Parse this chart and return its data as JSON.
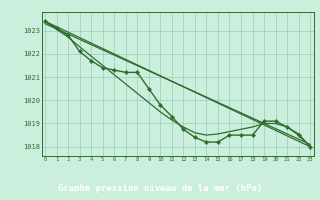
{
  "hours": [
    0,
    1,
    2,
    3,
    4,
    5,
    6,
    7,
    8,
    9,
    10,
    11,
    12,
    13,
    14,
    15,
    16,
    17,
    18,
    19,
    20,
    21,
    22,
    23
  ],
  "pressure_curve": [
    1023.4,
    1023.1,
    1022.8,
    1022.1,
    1021.7,
    1021.4,
    1021.3,
    1021.2,
    1021.2,
    1020.5,
    1019.8,
    1019.3,
    1018.75,
    1018.4,
    1018.2,
    1018.2,
    1018.5,
    1018.5,
    1018.5,
    1019.1,
    1019.1,
    1018.85,
    1018.5,
    1018.0
  ],
  "pressure_upper": [
    1023.4,
    1023.05,
    1022.72,
    1022.3,
    1021.9,
    1021.5,
    1021.1,
    1020.7,
    1020.3,
    1019.9,
    1019.5,
    1019.15,
    1018.85,
    1018.6,
    1018.5,
    1018.55,
    1018.65,
    1018.75,
    1018.85,
    1019.0,
    1019.0,
    1018.85,
    1018.55,
    1018.0
  ],
  "straight_line1_x": [
    0,
    23
  ],
  "straight_line1_y": [
    1023.4,
    1018.0
  ],
  "straight_line2_x": [
    0,
    23
  ],
  "straight_line2_y": [
    1023.3,
    1018.1
  ],
  "ylim": [
    1017.6,
    1023.8
  ],
  "yticks": [
    1018,
    1019,
    1020,
    1021,
    1022,
    1023
  ],
  "xticks": [
    0,
    1,
    2,
    3,
    4,
    5,
    6,
    7,
    8,
    9,
    10,
    11,
    12,
    13,
    14,
    15,
    16,
    17,
    18,
    19,
    20,
    21,
    22,
    23
  ],
  "xlabel": "Graphe pression niveau de la mer (hPa)",
  "line_color": "#2d6e2d",
  "bg_color": "#cceedd",
  "grid_color": "#99ccbb",
  "xlabel_bg": "#2d6e2d",
  "xlabel_text_color": "#ffffff",
  "tick_color": "#2d6e2d"
}
